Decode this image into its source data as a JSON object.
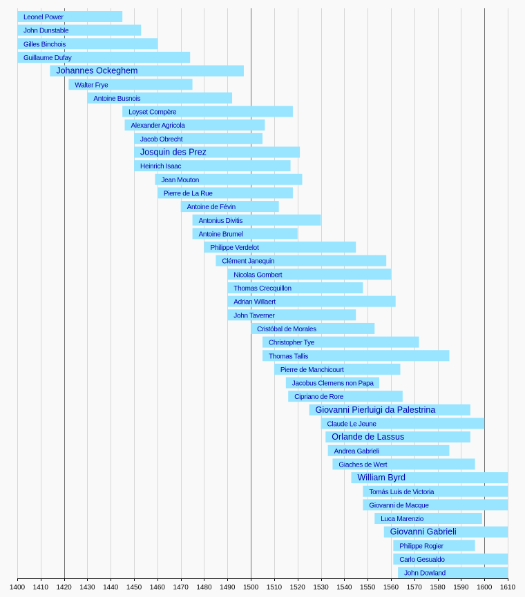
{
  "chart_data": {
    "type": "bar",
    "orientation": "horizontal",
    "title": "",
    "xlabel": "",
    "ylabel": "",
    "xlim": [
      1400,
      1610
    ],
    "x_ticks": [
      1400,
      1410,
      1420,
      1430,
      1440,
      1450,
      1460,
      1470,
      1480,
      1490,
      1500,
      1510,
      1520,
      1530,
      1540,
      1550,
      1560,
      1570,
      1580,
      1590,
      1600,
      1610
    ],
    "major_gridlines": [
      1420,
      1500,
      1600
    ],
    "colors": {
      "bar": "#99e5ff",
      "label": "#0000aa",
      "minor_grid": "#d6d6d6",
      "major_grid": "#707070",
      "background": "#f9f9f9"
    },
    "bars": [
      {
        "label": "Leonel Power",
        "start": 1400,
        "end": 1445
      },
      {
        "label": "John Dunstable",
        "start": 1400,
        "end": 1453
      },
      {
        "label": "Gilles Binchois",
        "start": 1400,
        "end": 1460
      },
      {
        "label": "Guillaume Dufay",
        "start": 1400,
        "end": 1474
      },
      {
        "label": "Johannes Ockeghem",
        "start": 1414,
        "end": 1497,
        "emphasis": true
      },
      {
        "label": "Walter Frye",
        "start": 1422,
        "end": 1475
      },
      {
        "label": "Antoine Busnois",
        "start": 1430,
        "end": 1492
      },
      {
        "label": "Loyset Compère",
        "start": 1445,
        "end": 1518
      },
      {
        "label": "Alexander Agricola",
        "start": 1446,
        "end": 1506
      },
      {
        "label": "Jacob Obrecht",
        "start": 1450,
        "end": 1505
      },
      {
        "label": "Josquin des Prez",
        "start": 1450,
        "end": 1521,
        "emphasis": true
      },
      {
        "label": "Heinrich Isaac",
        "start": 1450,
        "end": 1517
      },
      {
        "label": "Jean Mouton",
        "start": 1459,
        "end": 1522
      },
      {
        "label": "Pierre de La Rue",
        "start": 1460,
        "end": 1518
      },
      {
        "label": "Antoine de Févin",
        "start": 1470,
        "end": 1512
      },
      {
        "label": "Antonius Divitis",
        "start": 1475,
        "end": 1530
      },
      {
        "label": "Antoine Brumel",
        "start": 1475,
        "end": 1520
      },
      {
        "label": "Philippe Verdelot",
        "start": 1480,
        "end": 1545
      },
      {
        "label": "Clément Janequin",
        "start": 1485,
        "end": 1558
      },
      {
        "label": "Nicolas Gombert",
        "start": 1490,
        "end": 1560
      },
      {
        "label": "Thomas Crecquillon",
        "start": 1490,
        "end": 1548
      },
      {
        "label": "Adrian Willaert",
        "start": 1490,
        "end": 1562
      },
      {
        "label": "John Taverner",
        "start": 1490,
        "end": 1545
      },
      {
        "label": "Cristóbal de Morales",
        "start": 1500,
        "end": 1553
      },
      {
        "label": "Christopher Tye",
        "start": 1505,
        "end": 1572
      },
      {
        "label": "Thomas Tallis",
        "start": 1505,
        "end": 1585
      },
      {
        "label": "Pierre de Manchicourt",
        "start": 1510,
        "end": 1564
      },
      {
        "label": "Jacobus Clemens non Papa",
        "start": 1515,
        "end": 1555
      },
      {
        "label": "Cipriano de Rore",
        "start": 1516,
        "end": 1565
      },
      {
        "label": "Giovanni Pierluigi da Palestrina",
        "start": 1525,
        "end": 1594,
        "emphasis": true
      },
      {
        "label": "Claude Le Jeune",
        "start": 1530,
        "end": 1600
      },
      {
        "label": "Orlande de Lassus",
        "start": 1532,
        "end": 1594,
        "emphasis": true
      },
      {
        "label": "Andrea Gabrieli",
        "start": 1533,
        "end": 1585
      },
      {
        "label": "Giaches de Wert",
        "start": 1535,
        "end": 1596
      },
      {
        "label": "William Byrd",
        "start": 1543,
        "end": 1623,
        "emphasis": true
      },
      {
        "label": "Tomás Luis de Victoria",
        "start": 1548,
        "end": 1611
      },
      {
        "label": "Giovanni de Macque",
        "start": 1548,
        "end": 1614
      },
      {
        "label": "Luca Marenzio",
        "start": 1553,
        "end": 1599
      },
      {
        "label": "Giovanni Gabrieli",
        "start": 1557,
        "end": 1612,
        "emphasis": true
      },
      {
        "label": "Philippe Rogier",
        "start": 1561,
        "end": 1596
      },
      {
        "label": "Carlo Gesualdo",
        "start": 1561,
        "end": 1613
      },
      {
        "label": "John Dowland",
        "start": 1563,
        "end": 1626
      }
    ]
  }
}
